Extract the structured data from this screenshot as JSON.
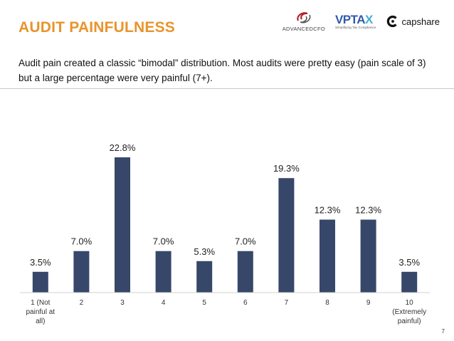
{
  "header": {
    "title": "AUDIT PAINFULNESS",
    "logos": [
      {
        "name": "ADVANCEDCFO",
        "icon": "advancecfo-swirl-icon",
        "color": "#b3202a"
      },
      {
        "name": "VPTAX",
        "tagline": "Simplifying Tax Compliance",
        "color": "#2f5aa8"
      },
      {
        "name": "capshare",
        "icon": "capshare-c-icon",
        "color": "#111111"
      }
    ]
  },
  "subtitle": "Audit pain created a classic “bimodal” distribution.  Most audits were pretty easy (pain scale of 3) but a large percentage were very painful (7+).",
  "chart_data": {
    "type": "bar",
    "categories": [
      "1 (Not painful at all)",
      "2",
      "3",
      "4",
      "5",
      "6",
      "7",
      "8",
      "9",
      "10 (Extremely painful)"
    ],
    "category_lines": [
      [
        "1 (Not",
        "painful at",
        "all)"
      ],
      [
        "2"
      ],
      [
        "3"
      ],
      [
        "4"
      ],
      [
        "5"
      ],
      [
        "6"
      ],
      [
        "7"
      ],
      [
        "8"
      ],
      [
        "9"
      ],
      [
        "10",
        "(Extremely",
        "painful)"
      ]
    ],
    "values": [
      3.5,
      7.0,
      22.8,
      7.0,
      5.3,
      7.0,
      19.3,
      12.3,
      12.3,
      3.5
    ],
    "data_labels": [
      "3.5%",
      "7.0%",
      "22.8%",
      "7.0%",
      "5.3%",
      "7.0%",
      "19.3%",
      "12.3%",
      "12.3%",
      "3.5%"
    ],
    "ylim": [
      0,
      25
    ],
    "bar_color": "#36476a",
    "grid": false,
    "title": "",
    "xlabel": "",
    "ylabel": ""
  },
  "page_number": "7",
  "colors": {
    "accent": "#e8942c",
    "text": "#111111",
    "divider": "#c9c9c9"
  }
}
